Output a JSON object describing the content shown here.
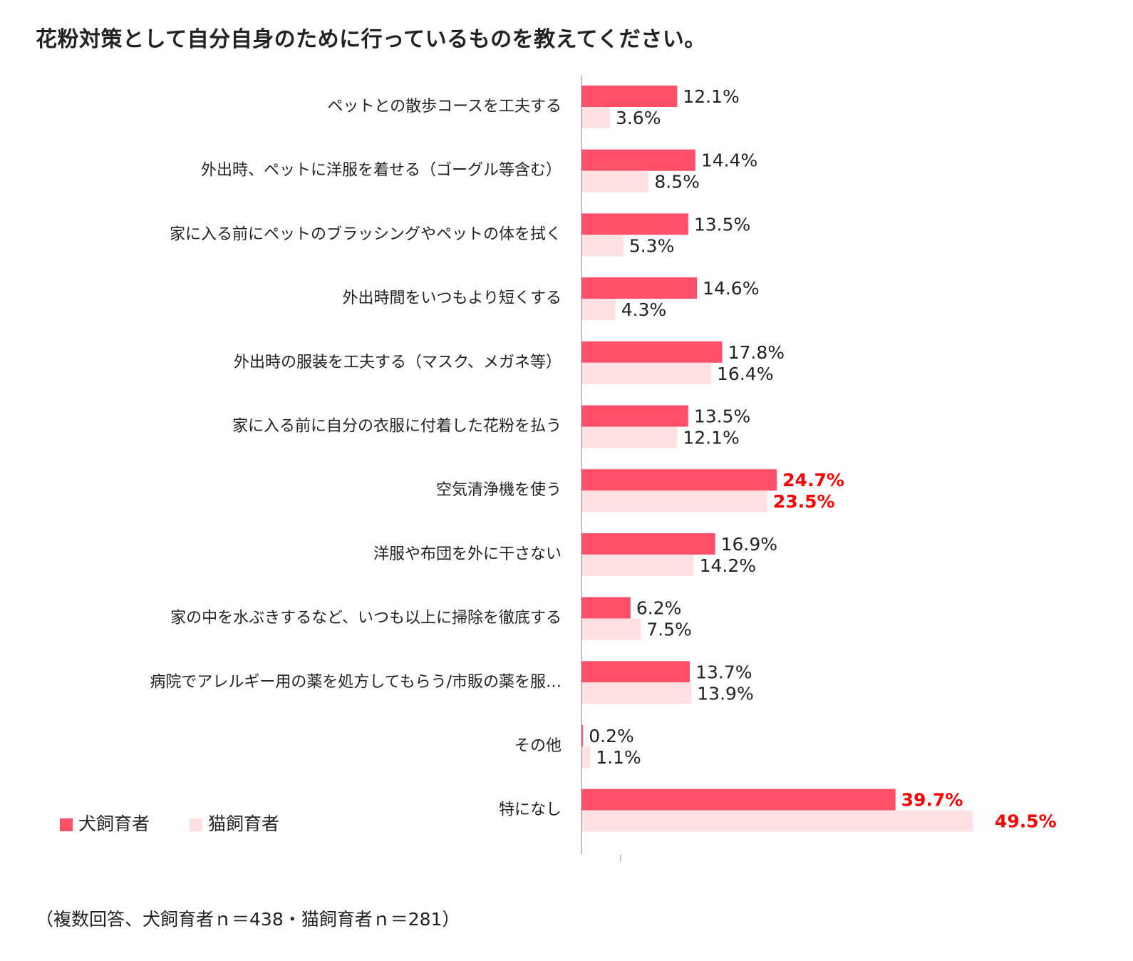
{
  "title": "花粉対策として自分自身のために行っているものを教えてください。",
  "footnote": "（複数回答、犬飼育者ｎ＝438・猫飼育者ｎ＝281）",
  "colors": {
    "dog": "#ff4f69",
    "cat": "#ffe0e3",
    "highlight": "#ff0000",
    "axis": "#888888"
  },
  "chart_data": {
    "type": "bar",
    "orientation": "horizontal",
    "unit": "%",
    "xlim": [
      0,
      50
    ],
    "grid": false,
    "legend_position": "bottom-left",
    "categories": [
      "ペットとの散歩コースを工夫する",
      "外出時、ペットに洋服を着せる（ゴーグル等含む）",
      "家に入る前にペットのブラッシングやペットの体を拭く",
      "外出時間をいつもより短くする",
      "外出時の服装を工夫する（マスク、メガネ等）",
      "家に入る前に自分の衣服に付着した花粉を払う",
      "空気清浄機を使う",
      "洋服や布団を外に干さない",
      "家の中を水ぶきするなど、いつも以上に掃除を徹底する",
      "病院でアレルギー用の薬を処方してもらう/市販の薬を服…",
      "その他",
      "特になし"
    ],
    "series": [
      {
        "name": "犬飼育者",
        "values": [
          12.1,
          14.4,
          13.5,
          14.6,
          17.8,
          13.5,
          24.7,
          16.9,
          6.2,
          13.7,
          0.2,
          39.7
        ]
      },
      {
        "name": "猫飼育者",
        "values": [
          3.6,
          8.5,
          5.3,
          4.3,
          16.4,
          12.1,
          23.5,
          14.2,
          7.5,
          13.9,
          1.1,
          49.5
        ]
      }
    ],
    "highlighted_categories": [
      "空気清浄機を使う",
      "特になし"
    ]
  }
}
